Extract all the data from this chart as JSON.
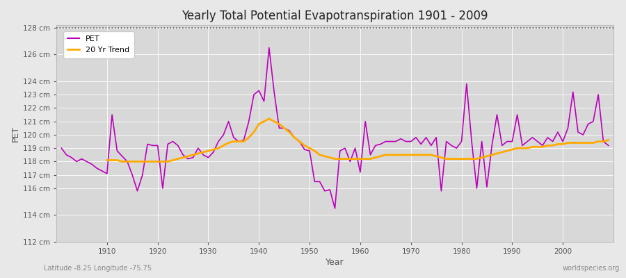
{
  "title": "Yearly Total Potential Evapotranspiration 1901 - 2009",
  "xlabel": "Year",
  "ylabel": "PET",
  "bottom_left_label": "Latitude -8.25 Longitude -75.75",
  "bottom_right_label": "worldspecies.org",
  "legend_pet": "PET",
  "legend_trend": "20 Yr Trend",
  "pet_color": "#bb00bb",
  "trend_color": "#ffaa00",
  "bg_color": "#e8e8e8",
  "plot_bg_color": "#d8d8d8",
  "grid_color": "#ffffff",
  "ylim_min": 112,
  "ylim_max": 128,
  "xlim_min": 1901,
  "xlim_max": 2009,
  "dotted_line_y": 128,
  "yticks": [
    112,
    114,
    116,
    117,
    118,
    119,
    120,
    121,
    122,
    123,
    124,
    126,
    128
  ],
  "ytick_labels": [
    "112 cm",
    "114 cm",
    "116 cm",
    "117 cm",
    "118 cm",
    "119 cm",
    "120 cm",
    "121 cm",
    "122 cm",
    "123 cm",
    "124 cm",
    "126 cm",
    "128 cm"
  ],
  "xticks": [
    1910,
    1920,
    1930,
    1940,
    1950,
    1960,
    1970,
    1980,
    1990,
    2000
  ],
  "years": [
    1901,
    1902,
    1903,
    1904,
    1905,
    1906,
    1907,
    1908,
    1909,
    1910,
    1911,
    1912,
    1913,
    1914,
    1915,
    1916,
    1917,
    1918,
    1919,
    1920,
    1921,
    1922,
    1923,
    1924,
    1925,
    1926,
    1927,
    1928,
    1929,
    1930,
    1931,
    1932,
    1933,
    1934,
    1935,
    1936,
    1937,
    1938,
    1939,
    1940,
    1941,
    1942,
    1943,
    1944,
    1945,
    1946,
    1947,
    1948,
    1949,
    1950,
    1951,
    1952,
    1953,
    1954,
    1955,
    1956,
    1957,
    1958,
    1959,
    1960,
    1961,
    1962,
    1963,
    1964,
    1965,
    1966,
    1967,
    1968,
    1969,
    1970,
    1971,
    1972,
    1973,
    1974,
    1975,
    1976,
    1977,
    1978,
    1979,
    1980,
    1981,
    1982,
    1983,
    1984,
    1985,
    1986,
    1987,
    1988,
    1989,
    1990,
    1991,
    1992,
    1993,
    1994,
    1995,
    1996,
    1997,
    1998,
    1999,
    2000,
    2001,
    2002,
    2003,
    2004,
    2005,
    2006,
    2007,
    2008,
    2009
  ],
  "pet_values": [
    119.0,
    118.5,
    118.3,
    118.0,
    118.2,
    118.0,
    117.8,
    117.5,
    117.3,
    117.1,
    121.5,
    118.8,
    118.4,
    118.0,
    117.0,
    115.8,
    117.0,
    119.3,
    119.2,
    119.2,
    116.0,
    119.3,
    119.5,
    119.2,
    118.5,
    118.2,
    118.3,
    119.0,
    118.5,
    118.3,
    118.7,
    119.5,
    120.0,
    121.0,
    119.8,
    119.5,
    119.6,
    121.0,
    123.0,
    123.3,
    122.5,
    126.5,
    123.2,
    120.5,
    120.5,
    120.3,
    119.8,
    119.5,
    118.9,
    118.8,
    116.5,
    116.5,
    115.8,
    115.9,
    114.5,
    118.8,
    119.0,
    118.0,
    119.0,
    117.2,
    121.0,
    118.5,
    119.2,
    119.3,
    119.5,
    119.5,
    119.5,
    119.7,
    119.5,
    119.5,
    119.8,
    119.3,
    119.8,
    119.2,
    119.8,
    115.8,
    119.5,
    119.2,
    119.0,
    119.5,
    123.8,
    119.5,
    116.0,
    119.5,
    116.1,
    119.2,
    121.5,
    119.2,
    119.5,
    119.5,
    121.5,
    119.2,
    119.5,
    119.8,
    119.5,
    119.2,
    119.8,
    119.5,
    120.2,
    119.5,
    120.5,
    123.2,
    120.2,
    120.0,
    120.8,
    121.0,
    123.0,
    119.5,
    119.2
  ],
  "trend_values": [
    null,
    null,
    null,
    null,
    null,
    null,
    null,
    null,
    null,
    118.1,
    118.1,
    118.1,
    118.0,
    118.0,
    118.0,
    118.0,
    118.0,
    118.0,
    118.0,
    118.0,
    118.0,
    118.0,
    118.1,
    118.2,
    118.3,
    118.4,
    118.5,
    118.6,
    118.7,
    118.8,
    118.9,
    119.0,
    119.2,
    119.4,
    119.5,
    119.5,
    119.5,
    119.8,
    120.2,
    120.8,
    121.0,
    121.2,
    121.0,
    120.8,
    120.5,
    120.2,
    119.8,
    119.5,
    119.2,
    119.0,
    118.8,
    118.5,
    118.4,
    118.3,
    118.2,
    118.2,
    118.2,
    118.2,
    118.2,
    118.2,
    118.2,
    118.2,
    118.3,
    118.4,
    118.5,
    118.5,
    118.5,
    118.5,
    118.5,
    118.5,
    118.5,
    118.5,
    118.5,
    118.5,
    118.4,
    118.3,
    118.2,
    118.2,
    118.2,
    118.2,
    118.2,
    118.2,
    118.2,
    118.3,
    118.4,
    118.5,
    118.6,
    118.7,
    118.8,
    118.9,
    119.0,
    119.0,
    119.0,
    119.1,
    119.1,
    119.1,
    119.2,
    119.2,
    119.3,
    119.3,
    119.4,
    119.4,
    119.4,
    119.4,
    119.4,
    119.4,
    119.5,
    119.5,
    119.6
  ]
}
